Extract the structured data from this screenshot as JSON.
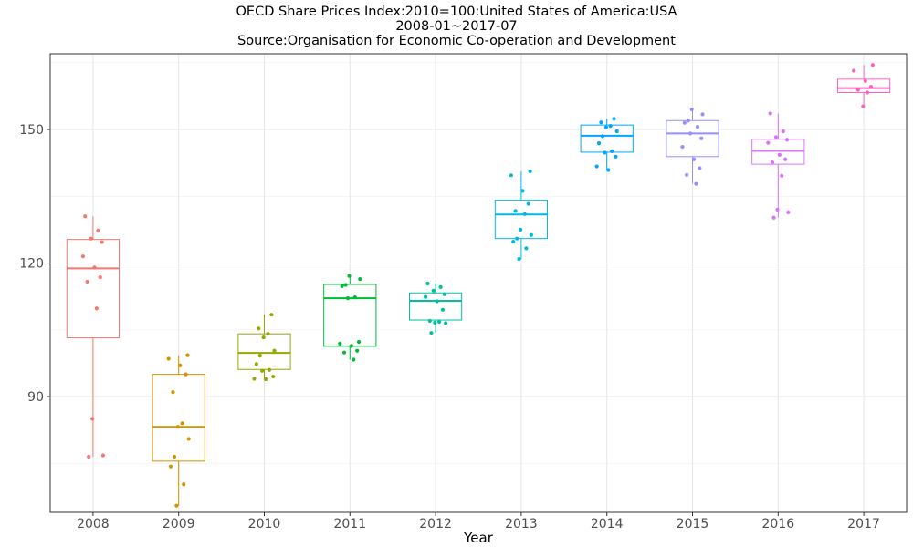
{
  "chart_data": {
    "type": "box",
    "title_lines": [
      "OECD Share Prices Index:2010=100:United States of America:USA",
      "2008-01~2017-07",
      "Source:Organisation for Economic Co-operation and Development"
    ],
    "xlabel": "Year",
    "ylabel": "",
    "ylim": [
      64,
      167
    ],
    "y_ticks": [
      90,
      120,
      150
    ],
    "grid": true,
    "legend": "none",
    "categories": [
      "2008",
      "2009",
      "2010",
      "2011",
      "2012",
      "2013",
      "2014",
      "2015",
      "2016",
      "2017"
    ],
    "colors": [
      "#F8766D",
      "#D39200",
      "#93AA00",
      "#00BA38",
      "#00C19F",
      "#00B9E3",
      "#00A5FF",
      "#9590FF",
      "#DB72FB",
      "#FF61C3"
    ],
    "boxes": [
      {
        "category": "2008",
        "min": 76.5,
        "q1": 103.2,
        "median": 118.8,
        "q3": 125.3,
        "max": 130.5
      },
      {
        "category": "2009",
        "min": 65.5,
        "q1": 75.5,
        "median": 83.2,
        "q3": 95.0,
        "max": 99.3
      },
      {
        "category": "2010",
        "min": 93.7,
        "q1": 96.1,
        "median": 99.8,
        "q3": 104.1,
        "max": 108.4
      },
      {
        "category": "2011",
        "min": 98.3,
        "q1": 101.3,
        "median": 112.1,
        "q3": 115.2,
        "max": 117.1
      },
      {
        "category": "2012",
        "min": 104.3,
        "q1": 107.2,
        "median": 111.5,
        "q3": 113.3,
        "max": 115.4
      },
      {
        "category": "2013",
        "min": 120.9,
        "q1": 125.5,
        "median": 130.9,
        "q3": 134.1,
        "max": 140.6
      },
      {
        "category": "2014",
        "min": 140.9,
        "q1": 144.9,
        "median": 148.6,
        "q3": 151.0,
        "max": 152.4
      },
      {
        "category": "2015",
        "min": 137.8,
        "q1": 143.9,
        "median": 149.1,
        "q3": 152.0,
        "max": 154.5
      },
      {
        "category": "2016",
        "min": 130.2,
        "q1": 142.2,
        "median": 145.2,
        "q3": 147.8,
        "max": 153.6
      },
      {
        "category": "2017",
        "min": 155.2,
        "q1": 158.3,
        "median": 159.3,
        "q3": 161.3,
        "max": 164.5
      }
    ],
    "points": [
      [
        130.5,
        127.3,
        125.5,
        124.7,
        121.5,
        119.0,
        116.8,
        115.8,
        109.8,
        85.0,
        76.8,
        76.5
      ],
      [
        99.3,
        98.5,
        97.0,
        95.0,
        91.0,
        84.0,
        83.2,
        80.5,
        76.5,
        74.3,
        70.3,
        65.5
      ],
      [
        108.4,
        105.3,
        104.1,
        103.3,
        100.3,
        99.2,
        97.3,
        96.0,
        95.8,
        94.5,
        94.0,
        93.9
      ],
      [
        117.1,
        116.4,
        115.1,
        114.8,
        112.3,
        112.1,
        102.3,
        101.9,
        101.4,
        100.3,
        99.9,
        98.3
      ],
      [
        115.4,
        114.6,
        113.8,
        113.0,
        112.4,
        111.4,
        109.5,
        107.0,
        106.8,
        106.6,
        106.5,
        104.3
      ],
      [
        140.6,
        139.7,
        136.2,
        133.3,
        131.7,
        131.0,
        127.5,
        126.3,
        125.5,
        124.8,
        123.3,
        120.9
      ],
      [
        152.4,
        151.6,
        150.8,
        150.5,
        149.6,
        148.5,
        146.9,
        145.1,
        144.8,
        143.9,
        141.7,
        140.9
      ],
      [
        154.5,
        153.4,
        152.0,
        151.5,
        150.6,
        149.1,
        148.0,
        146.1,
        143.3,
        141.3,
        139.8,
        137.8
      ],
      [
        153.6,
        149.6,
        148.3,
        147.7,
        147.0,
        144.3,
        143.3,
        142.6,
        139.6,
        132.0,
        131.4,
        130.2
      ],
      [
        164.5,
        163.2,
        160.9,
        159.6,
        158.9,
        158.3,
        155.2
      ]
    ]
  }
}
